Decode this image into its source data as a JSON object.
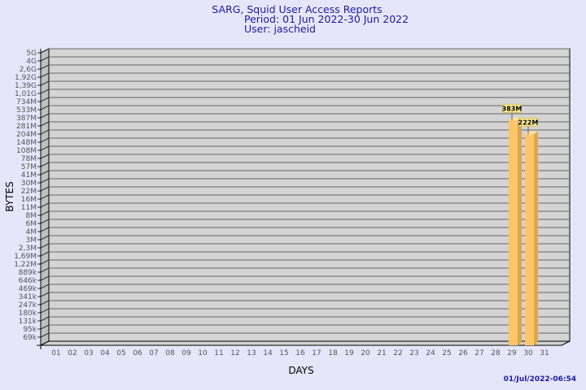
{
  "chart_data": {
    "type": "bar",
    "title": [
      "SARG, Squid User Access Reports",
      "Period: 01 Jun 2022-30 Jun 2022",
      "User: jascheid"
    ],
    "xlabel": "DAYS",
    "ylabel": "BYTES",
    "y_scale": "log",
    "y_ticks": [
      "5G",
      "4G",
      "2,6G",
      "1,92G",
      "1,39G",
      "1,01G",
      "734M",
      "533M",
      "387M",
      "281M",
      "204M",
      "148M",
      "108M",
      "78M",
      "57M",
      "41M",
      "30M",
      "22M",
      "16M",
      "11M",
      "8M",
      "6M",
      "4M",
      "3M",
      "2,3M",
      "1,69M",
      "1,22M",
      "889k",
      "646k",
      "469k",
      "341k",
      "247k",
      "180k",
      "131k",
      "95k",
      "69k"
    ],
    "y_range": [
      69000,
      5000000000
    ],
    "categories": [
      "01",
      "02",
      "03",
      "04",
      "05",
      "06",
      "07",
      "08",
      "09",
      "10",
      "11",
      "12",
      "13",
      "14",
      "15",
      "16",
      "17",
      "18",
      "19",
      "20",
      "21",
      "22",
      "23",
      "24",
      "25",
      "26",
      "27",
      "28",
      "29",
      "30",
      "31"
    ],
    "bars": [
      {
        "day": "29",
        "value": 383000000,
        "label": "383M"
      },
      {
        "day": "30",
        "value": 222000000,
        "label": "222M"
      }
    ],
    "grid": true,
    "colors": {
      "bar": "#ffc566",
      "bar_side": "#dba64f",
      "bar_top": "#ffe199",
      "wall": "#d4d4d4",
      "side_wall": "#c0c0c0",
      "label_bg": "#fff09a",
      "title": "#1a1aa6"
    },
    "footer": "01/Jul/2022-06:54"
  }
}
